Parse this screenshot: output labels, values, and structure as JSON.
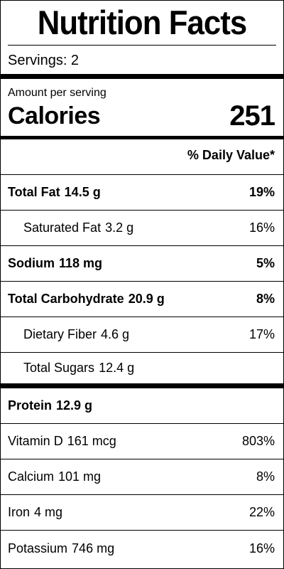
{
  "title": "Nutrition Facts",
  "servings": "Servings: 2",
  "amount_per_serving": "Amount per serving",
  "calories": {
    "label": "Calories",
    "value": "251"
  },
  "daily_value_header": "% Daily Value*",
  "nutrients": [
    {
      "name": "Total Fat",
      "amount": "14.5 g",
      "dv": "19%"
    },
    {
      "name": "Saturated Fat",
      "amount": "3.2 g",
      "dv": "16%"
    },
    {
      "name": "Sodium",
      "amount": "118 mg",
      "dv": "5%"
    },
    {
      "name": "Total Carbohydrate",
      "amount": "20.9 g",
      "dv": "8%"
    },
    {
      "name": "Dietary Fiber",
      "amount": "4.6 g",
      "dv": "17%"
    },
    {
      "name": "Total Sugars",
      "amount": "12.4 g",
      "dv": ""
    },
    {
      "name": "Protein",
      "amount": "12.9 g",
      "dv": ""
    },
    {
      "name": "Vitamin D",
      "amount": "161 mcg",
      "dv": "803%"
    },
    {
      "name": "Calcium",
      "amount": "101 mg",
      "dv": "8%"
    },
    {
      "name": "Iron",
      "amount": "4 mg",
      "dv": "22%"
    },
    {
      "name": "Potassium",
      "amount": "746 mg",
      "dv": "16%"
    }
  ]
}
